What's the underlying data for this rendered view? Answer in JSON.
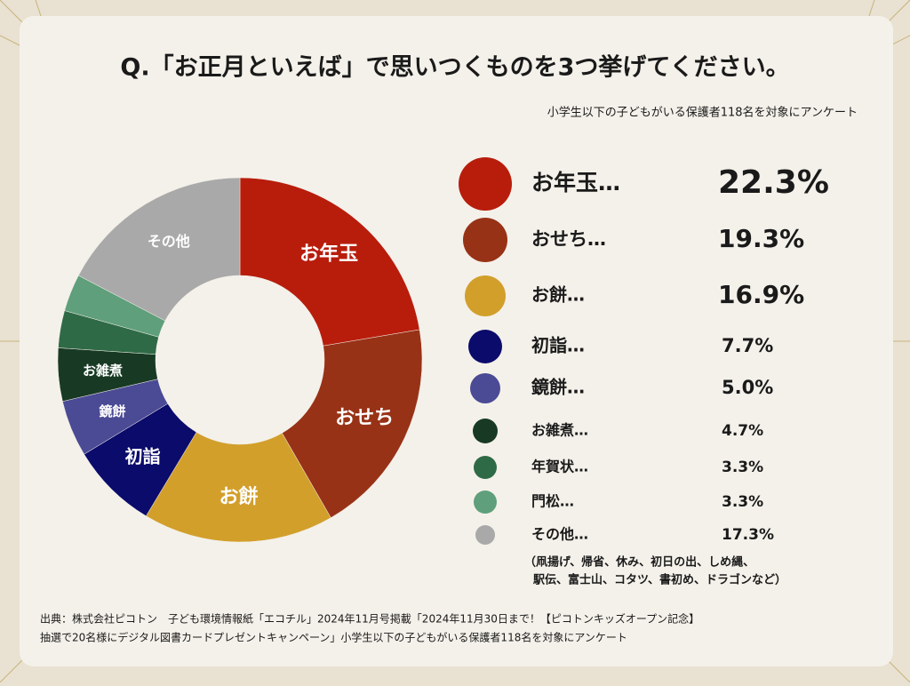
{
  "chart_data": {
    "type": "pie",
    "title": "Q.「お正月といえば」で思いつくものを3つ挙げてください。",
    "subtitle": "小学生以下の子どもがいる保護者118名を対象にアンケート",
    "categories": [
      "お年玉…",
      "おせち…",
      "お餅…",
      "初詣…",
      "鏡餅…",
      "お雑煮…",
      "年賀状…",
      "門松…",
      "その他…"
    ],
    "slice_labels": [
      "お年玉",
      "おせち",
      "お餅",
      "初詣",
      "鏡餅",
      "お雑煮",
      null,
      null,
      "その他"
    ],
    "values": [
      22.3,
      19.3,
      16.9,
      7.7,
      5.0,
      4.7,
      3.3,
      3.3,
      17.3
    ],
    "value_labels": [
      "22.3%",
      "19.3%",
      "16.9%",
      "7.7%",
      "5.0%",
      "4.7%",
      "3.3%",
      "3.3%",
      "17.3%"
    ],
    "colors": [
      "#b81d0c",
      "#983216",
      "#d29f2b",
      "#0b0b6c",
      "#4b4a95",
      "#183a24",
      "#2f6a46",
      "#5f9f7b",
      "#a9a9a9"
    ],
    "note": [
      "（凧揚げ、帰省、休み、初日の出、しめ縄、",
      "駅伝、富士山、コタツ、書初め、ドラゴンなど）"
    ],
    "source": [
      "出典：株式会社ピコトン　子ども環境情報紙「エコチル」2024年11月号掲載「2024年11月30日まで！【ピコトンキッズオープン記念】",
      "抽選で20名様にデジタル図書カードプレゼントキャンペーン」小学生以下の子どもがいる保護者118名を対象にアンケート"
    ]
  }
}
